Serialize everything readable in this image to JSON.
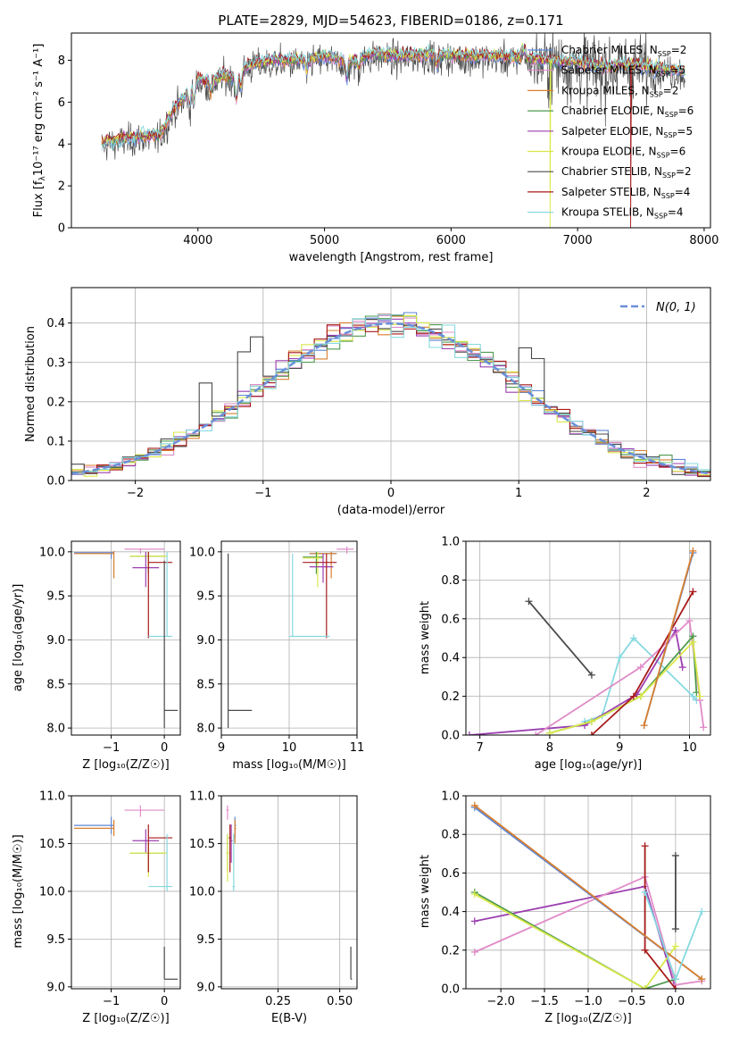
{
  "figure_title": "PLATE=2829, MJD=54623, FIBERID=0186, z=0.171",
  "colors": {
    "Chabrier MILES": "#5b86d6",
    "Salpeter MILES": "#e08cc8",
    "Kroupa MILES": "#d97f2e",
    "Chabrier ELODIE": "#4f9a4f",
    "Salpeter ELODIE": "#9b3fb0",
    "Kroupa ELODIE": "#d9e84a",
    "Chabrier STELIB": "#4a4a4a",
    "Salpeter STELIB": "#a81a1a",
    "Kroupa STELIB": "#86d9e0",
    "normal": "#6a8fd8"
  },
  "chart_data": [
    {
      "id": "spectrum",
      "type": "line",
      "title": "PLATE=2829, MJD=54623, FIBERID=0186, z=0.171",
      "xlabel": "wavelength [Angstrom, rest frame]",
      "ylabel_main": "Flux [f",
      "ylabel_sub": "λ",
      "ylabel_rest": "10⁻¹⁷ erg cm⁻² s⁻¹ A⁻¹]",
      "xlim": [
        3000,
        8050
      ],
      "ylim": [
        0,
        9.3
      ],
      "xticks": [
        "4000",
        "5000",
        "6000",
        "7000",
        "8000"
      ],
      "yticks": [
        "0",
        "2",
        "4",
        "6",
        "8"
      ],
      "legend_position": "top-right",
      "legend": [
        {
          "name": "Chabrier MILES, N",
          "sub": "SSP",
          "value": "=2",
          "key": "Chabrier MILES"
        },
        {
          "name": "Salpeter MILES, N",
          "sub": "SSP",
          "value": "=5",
          "key": "Salpeter MILES"
        },
        {
          "name": "Kroupa MILES, N",
          "sub": "SSP",
          "value": "=2",
          "key": "Kroupa MILES"
        },
        {
          "name": "Chabrier ELODIE, N",
          "sub": "SSP",
          "value": "=6",
          "key": "Chabrier ELODIE"
        },
        {
          "name": "Salpeter ELODIE, N",
          "sub": "SSP",
          "value": "=5",
          "key": "Salpeter ELODIE"
        },
        {
          "name": "Kroupa ELODIE, N",
          "sub": "SSP",
          "value": "=6",
          "key": "Kroupa ELODIE"
        },
        {
          "name": "Chabrier STELIB, N",
          "sub": "SSP",
          "value": "=2",
          "key": "Chabrier STELIB"
        },
        {
          "name": "Salpeter STELIB, N",
          "sub": "SSP",
          "value": "=4",
          "key": "Salpeter STELIB"
        },
        {
          "name": "Kroupa STELIB, N",
          "sub": "SSP",
          "value": "=4",
          "key": "Kroupa STELIB"
        }
      ],
      "continuum": [
        [
          3240,
          4.1
        ],
        [
          3500,
          4.35
        ],
        [
          3700,
          4.4
        ],
        [
          3800,
          5.6
        ],
        [
          3900,
          6.3
        ],
        [
          4000,
          7.1
        ],
        [
          4100,
          6.9
        ],
        [
          4200,
          7.3
        ],
        [
          4300,
          7.2
        ],
        [
          4400,
          7.8
        ],
        [
          4600,
          8.0
        ],
        [
          4800,
          8.0
        ],
        [
          5000,
          8.2
        ],
        [
          5200,
          7.9
        ],
        [
          5400,
          8.3
        ],
        [
          5600,
          8.2
        ],
        [
          5800,
          8.3
        ],
        [
          6000,
          8.25
        ],
        [
          6200,
          8.2
        ],
        [
          6400,
          8.2
        ],
        [
          6600,
          8.1
        ],
        [
          6800,
          7.95
        ],
        [
          7000,
          7.9
        ],
        [
          7200,
          7.7
        ],
        [
          7400,
          7.8
        ],
        [
          7600,
          7.7
        ],
        [
          7800,
          7.5
        ],
        [
          7850,
          7.5
        ]
      ],
      "features": [
        [
          3934,
          -0.8
        ],
        [
          3969,
          -0.9
        ],
        [
          4102,
          -0.5
        ],
        [
          4304,
          -1.1
        ],
        [
          4340,
          -0.7
        ],
        [
          4861,
          -0.6
        ],
        [
          5175,
          -0.8
        ],
        [
          5270,
          -0.4
        ],
        [
          5890,
          -0.5
        ],
        [
          6563,
          0.4
        ],
        [
          6583,
          0.3
        ],
        [
          7600,
          -0.3
        ]
      ],
      "noisy_range": [
        6650,
        7550
      ],
      "drops": [
        {
          "x": 3540,
          "key": "Salpeter STELIB"
        },
        {
          "x": 3910,
          "key": "Kroupa ELODIE"
        },
        {
          "x": 6780,
          "key": "Kroupa ELODIE"
        },
        {
          "x": 7420,
          "key": "Salpeter STELIB"
        }
      ],
      "series_order": [
        "Chabrier STELIB",
        "Chabrier MILES",
        "Salpeter MILES",
        "Kroupa MILES",
        "Chabrier ELODIE",
        "Salpeter ELODIE",
        "Kroupa ELODIE",
        "Salpeter STELIB",
        "Kroupa STELIB"
      ]
    },
    {
      "id": "residuals",
      "type": "histogram",
      "xlabel": "(data-model)/error",
      "ylabel": "Normed distribution",
      "xlim": [
        -2.5,
        2.5
      ],
      "ylim": [
        0,
        0.49
      ],
      "xticks": [
        "−2",
        "−1",
        "0",
        "1",
        "2"
      ],
      "yticks": [
        "0.0",
        "0.1",
        "0.2",
        "0.3",
        "0.4"
      ],
      "grid": true,
      "legend_position": "top-right",
      "legend_label": "N(0, 1)",
      "bins": 50,
      "spike": {
        "key": "Chabrier STELIB",
        "bins": [
          -2.1,
          -1.1,
          1.1
        ]
      },
      "series_order": [
        "Chabrier MILES",
        "Salpeter MILES",
        "Kroupa MILES",
        "Chabrier ELODIE",
        "Salpeter ELODIE",
        "Kroupa ELODIE",
        "Chabrier STELIB",
        "Salpeter STELIB",
        "Kroupa STELIB"
      ]
    },
    {
      "id": "age_vs_Z",
      "type": "errorbar",
      "xlabel": "Z [log₁₀(Z/Z☉)]",
      "ylabel": "age  [log₁₀(age/yr)]",
      "xlim": [
        -1.75,
        0.3
      ],
      "ylim": [
        7.92,
        10.12
      ],
      "xticks": [
        "−1",
        "0"
      ],
      "yticks": [
        "8.0",
        "8.5",
        "9.0",
        "9.5",
        "10.0"
      ],
      "grid": true,
      "points": [
        {
          "key": "Chabrier MILES",
          "x": -1.0,
          "y": 9.99,
          "xl": -1.7,
          "xh": -0.95,
          "yl": 9.92,
          "yh": 10.0
        },
        {
          "key": "Kroupa MILES",
          "x": -0.95,
          "y": 9.98,
          "xl": -1.7,
          "xh": -0.95,
          "yl": 9.7,
          "yh": 10.01
        },
        {
          "key": "Salpeter MILES",
          "x": -0.45,
          "y": 10.03,
          "xl": -0.75,
          "xh": 0.0,
          "yl": 9.98,
          "yh": 10.04
        },
        {
          "key": "Chabrier ELODIE",
          "x": -0.3,
          "y": 9.95,
          "xl": -0.65,
          "xh": 0.0,
          "yl": 9.75,
          "yh": 10.0
        },
        {
          "key": "Kroupa ELODIE",
          "x": -0.3,
          "y": 9.95,
          "xl": -0.65,
          "xh": 0.05,
          "yl": 9.8,
          "yh": 10.0
        },
        {
          "key": "Salpeter ELODIE",
          "x": -0.35,
          "y": 9.82,
          "xl": -0.6,
          "xh": -0.1,
          "yl": 9.6,
          "yh": 10.0
        },
        {
          "key": "Salpeter STELIB",
          "x": -0.3,
          "y": 9.88,
          "xl": -0.3,
          "xh": 0.15,
          "yl": 9.02,
          "yh": 10.0
        },
        {
          "key": "Kroupa STELIB",
          "x": 0.05,
          "y": 9.04,
          "xl": -0.3,
          "xh": 0.15,
          "yl": 9.04,
          "yh": 10.0
        },
        {
          "key": "Chabrier STELIB",
          "x": 0.0,
          "y": 8.2,
          "xl": 0.0,
          "xh": 0.25,
          "yl": 8.0,
          "yh": 9.9
        }
      ]
    },
    {
      "id": "age_vs_mass",
      "type": "errorbar",
      "xlabel": "mass [log₁₀(M/M☉)]",
      "ylabel": "",
      "xlim": [
        9.0,
        11.0
      ],
      "ylim": [
        7.92,
        10.12
      ],
      "xticks": [
        "9",
        "10",
        "11"
      ],
      "yticks": [
        "8.0",
        "8.5",
        "9.0",
        "9.5",
        "10.0"
      ],
      "grid": true,
      "points": [
        {
          "key": "Chabrier MILES",
          "x": 10.62,
          "y": 9.98,
          "xl": 10.3,
          "xh": 10.7,
          "yl": 9.92,
          "yh": 10.0
        },
        {
          "key": "Kroupa MILES",
          "x": 10.62,
          "y": 9.98,
          "xl": 10.3,
          "xh": 10.7,
          "yl": 9.7,
          "yh": 10.0
        },
        {
          "key": "Salpeter MILES",
          "x": 10.85,
          "y": 10.03,
          "xl": 10.7,
          "xh": 10.95,
          "yl": 9.98,
          "yh": 10.06
        },
        {
          "key": "Chabrier ELODIE",
          "x": 10.4,
          "y": 9.94,
          "xl": 10.2,
          "xh": 10.5,
          "yl": 9.75,
          "yh": 10.0
        },
        {
          "key": "Kroupa ELODIE",
          "x": 10.42,
          "y": 9.93,
          "xl": 10.2,
          "xh": 10.5,
          "yl": 9.6,
          "yh": 10.0
        },
        {
          "key": "Salpeter ELODIE",
          "x": 10.5,
          "y": 9.83,
          "xl": 10.3,
          "xh": 10.65,
          "yl": 9.65,
          "yh": 9.98
        },
        {
          "key": "Salpeter STELIB",
          "x": 10.55,
          "y": 9.88,
          "xl": 10.2,
          "xh": 10.7,
          "yl": 9.02,
          "yh": 9.98
        },
        {
          "key": "Kroupa STELIB",
          "x": 10.05,
          "y": 9.04,
          "xl": 10.0,
          "xh": 10.6,
          "yl": 9.04,
          "yh": 9.98
        },
        {
          "key": "Chabrier STELIB",
          "x": 9.1,
          "y": 8.2,
          "xl": 9.1,
          "xh": 9.45,
          "yl": 8.0,
          "yh": 9.98
        }
      ]
    },
    {
      "id": "weight_vs_age",
      "type": "line",
      "xlabel": "age  [log₁₀(age/yr)]",
      "ylabel": "mass weight",
      "xlim": [
        6.8,
        10.3
      ],
      "ylim": [
        0,
        1
      ],
      "xticks": [
        "7",
        "8",
        "9",
        "10"
      ],
      "yticks": [
        "0.0",
        "0.2",
        "0.4",
        "0.6",
        "0.8",
        "1.0"
      ],
      "grid": true,
      "series": [
        {
          "key": "Chabrier STELIB",
          "x": [
            7.7,
            8.6
          ],
          "y": [
            0.69,
            0.31
          ]
        },
        {
          "key": "Kroupa STELIB",
          "x": [
            8.5,
            8.75,
            9.0,
            9.2,
            10.05,
            10.1
          ],
          "y": [
            0.07,
            0.1,
            0.4,
            0.5,
            0.2,
            0.18
          ]
        },
        {
          "key": "Salpeter ELODIE",
          "x": [
            6.85,
            8.5,
            9.25,
            9.8,
            9.9
          ],
          "y": [
            0.0,
            0.05,
            0.21,
            0.54,
            0.35
          ]
        },
        {
          "key": "Salpeter MILES",
          "x": [
            7.8,
            9.3,
            10.0,
            10.15,
            10.2
          ],
          "y": [
            0.0,
            0.35,
            0.59,
            0.18,
            0.04
          ]
        },
        {
          "key": "Chabrier ELODIE",
          "x": [
            8.0,
            8.6,
            9.3,
            10.05,
            10.1
          ],
          "y": [
            0.01,
            0.07,
            0.2,
            0.51,
            0.22
          ]
        },
        {
          "key": "Kroupa ELODIE",
          "x": [
            8.0,
            8.6,
            9.3,
            10.05,
            10.15
          ],
          "y": [
            0.01,
            0.07,
            0.2,
            0.48,
            0.2
          ]
        },
        {
          "key": "Salpeter STELIB",
          "x": [
            8.6,
            9.2,
            10.05
          ],
          "y": [
            0.0,
            0.2,
            0.74
          ]
        },
        {
          "key": "Chabrier MILES",
          "x": [
            9.35,
            10.05
          ],
          "y": [
            0.05,
            0.94
          ]
        },
        {
          "key": "Kroupa MILES",
          "x": [
            9.35,
            10.05
          ],
          "y": [
            0.05,
            0.95
          ]
        }
      ]
    },
    {
      "id": "mass_vs_Z",
      "type": "errorbar",
      "xlabel": "Z [log₁₀(Z/Z☉)]",
      "ylabel": "mass [log₁₀(M/M☉)]",
      "xlim": [
        -1.75,
        0.3
      ],
      "ylim": [
        8.98,
        11.0
      ],
      "xticks": [
        "−1",
        "0"
      ],
      "yticks": [
        "9.0",
        "9.5",
        "10.0",
        "10.5",
        "11.0"
      ],
      "grid": true,
      "points": [
        {
          "key": "Chabrier MILES",
          "x": -1.0,
          "y": 10.69,
          "xl": -1.7,
          "xh": -0.95,
          "yl": 10.6,
          "yh": 10.78
        },
        {
          "key": "Kroupa MILES",
          "x": -0.95,
          "y": 10.66,
          "xl": -1.7,
          "xh": -0.95,
          "yl": 10.58,
          "yh": 10.75
        },
        {
          "key": "Salpeter MILES",
          "x": -0.45,
          "y": 10.85,
          "xl": -0.75,
          "xh": 0.0,
          "yl": 10.78,
          "yh": 10.9
        },
        {
          "key": "Salpeter ELODIE",
          "x": -0.35,
          "y": 10.53,
          "xl": -0.6,
          "xh": -0.1,
          "yl": 10.4,
          "yh": 10.65
        },
        {
          "key": "Chabrier ELODIE",
          "x": -0.3,
          "y": 10.4,
          "xl": -0.65,
          "xh": 0.0,
          "yl": 10.2,
          "yh": 10.5
        },
        {
          "key": "Kroupa ELODIE",
          "x": -0.3,
          "y": 10.4,
          "xl": -0.65,
          "xh": 0.05,
          "yl": 10.15,
          "yh": 10.5
        },
        {
          "key": "Salpeter STELIB",
          "x": -0.3,
          "y": 10.56,
          "xl": -0.3,
          "xh": 0.15,
          "yl": 10.2,
          "yh": 10.7
        },
        {
          "key": "Kroupa STELIB",
          "x": 0.05,
          "y": 10.05,
          "xl": -0.3,
          "xh": 0.15,
          "yl": 10.0,
          "yh": 10.6
        },
        {
          "key": "Chabrier STELIB",
          "x": 0.0,
          "y": 9.08,
          "xl": 0.0,
          "xh": 0.25,
          "yl": 9.08,
          "yh": 9.42
        }
      ]
    },
    {
      "id": "mass_vs_ebv",
      "type": "errorbar",
      "xlabel": "E(B-V)",
      "ylabel": "",
      "xlim": [
        0.02,
        0.57
      ],
      "ylim": [
        8.98,
        11.0
      ],
      "xticks": [
        "0.25",
        "0.50"
      ],
      "yticks": [
        "9.0",
        "9.5",
        "10.0",
        "10.5",
        "11.0"
      ],
      "grid": true,
      "points": [
        {
          "key": "Chabrier MILES",
          "x": 0.075,
          "y": 10.69,
          "xl": 0.075,
          "xh": 0.08,
          "yl": 10.55,
          "yh": 10.78
        },
        {
          "key": "Kroupa MILES",
          "x": 0.075,
          "y": 10.66,
          "xl": 0.075,
          "xh": 0.08,
          "yl": 10.5,
          "yh": 10.75
        },
        {
          "key": "Salpeter MILES",
          "x": 0.045,
          "y": 10.85,
          "xl": 0.04,
          "xh": 0.05,
          "yl": 10.75,
          "yh": 10.9
        },
        {
          "key": "Chabrier ELODIE",
          "x": 0.045,
          "y": 10.4,
          "xl": 0.04,
          "xh": 0.05,
          "yl": 10.2,
          "yh": 10.6
        },
        {
          "key": "Kroupa ELODIE",
          "x": 0.045,
          "y": 10.4,
          "xl": 0.04,
          "xh": 0.05,
          "yl": 10.1,
          "yh": 10.6
        },
        {
          "key": "Salpeter ELODIE",
          "x": 0.06,
          "y": 10.53,
          "xl": 0.055,
          "xh": 0.065,
          "yl": 10.3,
          "yh": 10.7
        },
        {
          "key": "Salpeter STELIB",
          "x": 0.055,
          "y": 10.56,
          "xl": 0.05,
          "xh": 0.06,
          "yl": 10.2,
          "yh": 10.7
        },
        {
          "key": "Kroupa STELIB",
          "x": 0.07,
          "y": 10.05,
          "xl": 0.065,
          "xh": 0.075,
          "yl": 10.0,
          "yh": 10.6
        },
        {
          "key": "Chabrier STELIB",
          "x": 0.545,
          "y": 9.08,
          "xl": 0.545,
          "xh": 0.55,
          "yl": 9.08,
          "yh": 9.42
        }
      ]
    },
    {
      "id": "weight_vs_Z",
      "type": "line",
      "xlabel": "Z [log₁₀(Z/Z☉)]",
      "ylabel": "mass weight",
      "xlim": [
        -2.4,
        0.4
      ],
      "ylim": [
        0,
        1
      ],
      "xticks": [
        "−2.0",
        "−1.5",
        "−1.0",
        "−0.5",
        "0.0"
      ],
      "yticks": [
        "0.0",
        "0.2",
        "0.4",
        "0.6",
        "0.8",
        "1.0"
      ],
      "grid": true,
      "series": [
        {
          "key": "Salpeter ELODIE",
          "x": [
            -2.3,
            -0.35,
            0.0
          ],
          "y": [
            0.35,
            0.53,
            0.0
          ]
        },
        {
          "key": "Salpeter MILES",
          "x": [
            -2.3,
            -0.35,
            0.0,
            0.3
          ],
          "y": [
            0.19,
            0.58,
            0.02,
            0.04
          ]
        },
        {
          "key": "Chabrier ELODIE",
          "x": [
            -2.3,
            -0.35,
            0.0
          ],
          "y": [
            0.5,
            0.0,
            0.05
          ]
        },
        {
          "key": "Kroupa ELODIE",
          "x": [
            -2.3,
            -0.35,
            0.0
          ],
          "y": [
            0.49,
            0.0,
            0.22
          ]
        },
        {
          "key": "Salpeter STELIB",
          "x": [
            -0.35,
            -0.35,
            0.0
          ],
          "y": [
            0.74,
            0.2,
            0.0
          ]
        },
        {
          "key": "Chabrier MILES",
          "x": [
            -2.3,
            0.3
          ],
          "y": [
            0.94,
            0.05
          ]
        },
        {
          "key": "Kroupa MILES",
          "x": [
            -2.3,
            0.3
          ],
          "y": [
            0.95,
            0.05
          ]
        },
        {
          "key": "Kroupa STELIB",
          "x": [
            -0.35,
            0.0,
            0.3
          ],
          "y": [
            0.5,
            0.05,
            0.4
          ]
        },
        {
          "key": "Chabrier STELIB",
          "x": [
            0.0,
            0.0
          ],
          "y": [
            0.31,
            0.69
          ]
        }
      ]
    }
  ]
}
